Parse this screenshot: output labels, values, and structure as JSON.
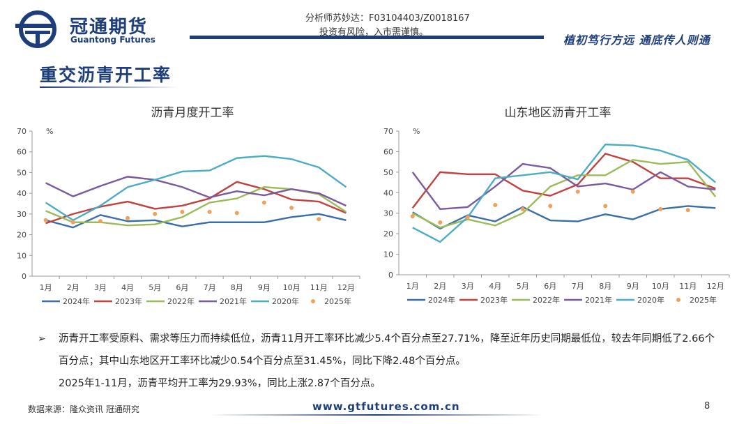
{
  "header": {
    "brand_cn": "冠通期货",
    "brand_en": "Guantong Futures",
    "analyst": "分析师苏妙达：F03104403/Z0018167",
    "risk": "投资有风险，入市需谨慎。",
    "motto": "植初笃行方远  通底传人则通"
  },
  "page_title": "重交沥青开工率",
  "colors": {
    "2024年": "#3a6ea8",
    "2023年": "#c0413d",
    "2022年": "#9bbb59",
    "2021年": "#7a5a9e",
    "2020年": "#4bacc6",
    "2025年": "#f0a05a"
  },
  "chart_data": [
    {
      "type": "line",
      "title": "沥青月度开工率",
      "ylabel": "%",
      "ylim": [
        0,
        70
      ],
      "yticks": [
        "0",
        "10",
        "20",
        "30",
        "40",
        "50",
        "60",
        "70"
      ],
      "categories": [
        "1月",
        "2月",
        "3月",
        "4月",
        "5月",
        "6月",
        "7月",
        "8月",
        "9月",
        "10月",
        "11月",
        "12月"
      ],
      "series": [
        {
          "name": "2024年",
          "values": [
            27,
            23.5,
            29.5,
            26.5,
            27,
            24,
            26,
            26,
            26,
            28.5,
            30,
            27
          ]
        },
        {
          "name": "2023年",
          "values": [
            25.5,
            30,
            33.5,
            36,
            32.5,
            34,
            37.5,
            45.5,
            42,
            37,
            36,
            30.5
          ]
        },
        {
          "name": "2022年",
          "values": [
            31.5,
            26,
            26,
            24.5,
            25,
            28.5,
            35.5,
            37.5,
            43,
            42,
            39.5,
            31
          ]
        },
        {
          "name": "2021年",
          "values": [
            45,
            38.5,
            43.5,
            48,
            46.5,
            43,
            38,
            41,
            39,
            42,
            40,
            34
          ]
        },
        {
          "name": "2020年",
          "values": [
            35.5,
            27,
            34,
            43,
            46.5,
            50.5,
            51,
            57,
            58,
            56.5,
            52.5,
            43
          ]
        },
        {
          "name": "2025年",
          "style": "dots",
          "values": [
            27,
            26,
            26.5,
            28,
            30,
            31,
            31,
            30.5,
            35.5,
            33,
            27.5,
            null
          ]
        }
      ]
    },
    {
      "type": "line",
      "title": "山东地区沥青开工率",
      "ylabel": "%",
      "ylim": [
        0,
        70
      ],
      "yticks": [
        "0",
        "10",
        "20",
        "30",
        "40",
        "50",
        "60",
        "70"
      ],
      "categories": [
        "1月",
        "2月",
        "3月",
        "4月",
        "5月",
        "6月",
        "7月",
        "8月",
        "9月",
        "10月",
        "11月",
        "12月"
      ],
      "series": [
        {
          "name": "2024年",
          "values": [
            30.5,
            22.5,
            29,
            26,
            33,
            26.5,
            26,
            29.5,
            27,
            32,
            33.5,
            32.5
          ]
        },
        {
          "name": "2023年",
          "values": [
            32.5,
            50,
            49,
            49,
            41,
            38.5,
            44,
            59,
            55,
            47,
            47,
            42
          ]
        },
        {
          "name": "2022年",
          "values": [
            30,
            23,
            27,
            24,
            30,
            43,
            48.5,
            48.5,
            56,
            54,
            55,
            38
          ]
        },
        {
          "name": "2021年",
          "values": [
            50,
            32,
            33,
            43,
            54,
            52,
            43,
            44.5,
            41.5,
            50,
            43,
            41.5
          ]
        },
        {
          "name": "2020年",
          "values": [
            23,
            16,
            28,
            47,
            48.5,
            50,
            46.5,
            63.5,
            63,
            60.5,
            56,
            45
          ]
        },
        {
          "name": "2025年",
          "style": "dots",
          "values": [
            28.5,
            25.5,
            28,
            34,
            32,
            33.5,
            40.5,
            33.5,
            40.5,
            32,
            31.5,
            null
          ]
        }
      ]
    }
  ],
  "bullets": {
    "marker": "➢",
    "line1": "沥青开工率受原料、需求等压力而持续低位，沥青11月开工率环比减少5.4个百分点至27.71%，降至近年历史同期最低位，较去年同期低了2.66个百分点；其中山东地区开工率环比减少0.54个百分点至31.45%，同比下降2.48个百分点。",
    "line2": "2025年1-11月，沥青平均开工率为29.93%，同比上涨2.87个百分点。"
  },
  "footer": {
    "source": "数据来源：隆众资讯 冠通研究",
    "website": "www.gtfutures.com.cn",
    "page": "8"
  }
}
